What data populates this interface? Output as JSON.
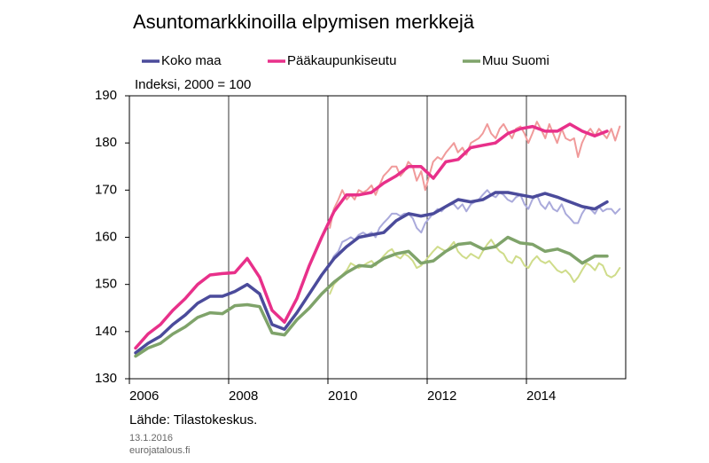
{
  "chart_data": {
    "type": "line",
    "title": "Asuntomarkkinoilla elpymisen merkkejä",
    "y_label": "Indeksi, 2000 = 100",
    "source": "Lähde: Tilastokeskus.",
    "date": "13.1.2016",
    "site": "eurojatalous.fi",
    "xlim": [
      2006,
      2016
    ],
    "xticks": [
      2006,
      2008,
      2010,
      2012,
      2014
    ],
    "ylim": [
      130,
      190
    ],
    "yticks": [
      130,
      140,
      150,
      160,
      170,
      180,
      190
    ],
    "grid": "x",
    "x": [
      2006.125,
      2006.375,
      2006.625,
      2006.875,
      2007.125,
      2007.375,
      2007.625,
      2007.875,
      2008.125,
      2008.375,
      2008.625,
      2008.875,
      2009.125,
      2009.375,
      2009.625,
      2009.875,
      2010.125,
      2010.375,
      2010.625,
      2010.875,
      2011.125,
      2011.375,
      2011.625,
      2011.875,
      2012.125,
      2012.375,
      2012.625,
      2012.875,
      2013.125,
      2013.375,
      2013.625,
      2013.875,
      2014.125,
      2014.375,
      2014.625,
      2014.875,
      2015.125,
      2015.375,
      2015.625
    ],
    "series": [
      {
        "name": "Koko maa",
        "color": "#4b4b9b",
        "values": [
          135.5,
          137.5,
          139,
          141.5,
          143.5,
          146,
          147.5,
          147.5,
          148.5,
          150,
          148,
          141.5,
          140.5,
          144,
          148,
          152,
          155.5,
          158,
          160,
          160.5,
          161,
          163.5,
          165,
          164.5,
          165,
          166.5,
          168,
          167.5,
          168,
          169.5,
          169.5,
          169,
          168.5,
          169.3,
          168.5,
          167.5,
          166.5,
          166,
          167.5
        ]
      },
      {
        "name": "Pääkaupunkiseutu",
        "color": "#e8308a",
        "values": [
          136.5,
          139.5,
          141.5,
          144.5,
          147,
          150,
          152,
          152.3,
          152.5,
          155.5,
          151.5,
          144.5,
          142,
          147,
          154,
          160,
          165.5,
          169,
          169,
          169.5,
          171.5,
          173,
          175,
          175,
          172.5,
          176,
          176.5,
          179,
          179.5,
          180,
          182,
          183,
          183.5,
          182.5,
          182.5,
          184,
          182.5,
          181.5,
          182.5
        ]
      },
      {
        "name": "Muu Suomi",
        "color": "#7fa36a",
        "values": [
          134.8,
          136.5,
          137.5,
          139.5,
          141,
          143,
          144,
          143.8,
          145.5,
          145.7,
          145.3,
          139.7,
          139.3,
          142.5,
          145,
          148,
          150.5,
          152.5,
          154,
          153.8,
          155.5,
          156.5,
          157,
          154.5,
          155,
          157,
          158.5,
          158.8,
          157.5,
          158,
          160,
          158.8,
          158.5,
          157,
          157.5,
          156.5,
          154.5,
          156,
          156
        ]
      }
    ],
    "monthly_x": [
      2010.04,
      2010.12,
      2010.21,
      2010.29,
      2010.38,
      2010.46,
      2010.54,
      2010.62,
      2010.71,
      2010.79,
      2010.88,
      2010.96,
      2011.04,
      2011.12,
      2011.21,
      2011.29,
      2011.38,
      2011.46,
      2011.54,
      2011.62,
      2011.71,
      2011.79,
      2011.88,
      2011.96,
      2012.04,
      2012.12,
      2012.21,
      2012.29,
      2012.38,
      2012.46,
      2012.54,
      2012.62,
      2012.71,
      2012.79,
      2012.88,
      2012.96,
      2013.04,
      2013.12,
      2013.21,
      2013.29,
      2013.38,
      2013.46,
      2013.54,
      2013.62,
      2013.71,
      2013.79,
      2013.88,
      2013.96,
      2014.04,
      2014.12,
      2014.21,
      2014.29,
      2014.38,
      2014.46,
      2014.54,
      2014.62,
      2014.71,
      2014.79,
      2014.88,
      2014.96,
      2015.04,
      2015.12,
      2015.21,
      2015.29,
      2015.38,
      2015.46,
      2015.54,
      2015.62,
      2015.71,
      2015.79,
      2015.88
    ],
    "monthly_series": [
      {
        "color": "#aaaadb",
        "values": [
          154,
          156,
          157,
          159,
          159.5,
          160,
          159.5,
          160.5,
          161,
          160.5,
          161,
          160,
          162,
          163,
          164,
          165,
          165,
          164.5,
          165,
          165,
          164,
          162,
          161,
          163,
          164,
          165,
          166,
          165.5,
          166.5,
          167,
          167,
          166,
          167,
          165.5,
          167,
          167.5,
          168,
          169,
          170,
          169,
          168.5,
          169.5,
          169,
          168,
          167.5,
          168.5,
          169,
          167,
          166,
          168,
          169,
          167,
          166,
          167.5,
          166,
          165.5,
          167,
          165,
          164,
          163,
          163,
          165,
          166.5,
          166,
          165,
          166.5,
          165.5,
          166,
          166,
          165,
          166
        ]
      },
      {
        "color": "#f09a9a",
        "values": [
          162,
          166,
          168,
          170,
          168,
          169,
          168,
          170,
          169.5,
          170,
          171,
          169,
          171,
          173,
          174,
          175,
          175,
          173,
          174,
          176,
          175,
          172,
          174,
          170,
          173,
          176,
          177,
          176.5,
          178,
          179,
          180,
          178,
          179,
          177.5,
          180,
          180.5,
          181,
          182,
          184,
          182,
          181,
          183,
          184,
          182.5,
          181,
          183,
          183.5,
          182,
          180,
          182,
          184.5,
          183,
          181,
          184,
          182,
          180,
          183,
          181,
          180.5,
          181,
          177,
          180,
          182,
          183,
          181.5,
          183,
          182,
          181,
          183,
          180.5,
          183.5
        ]
      },
      {
        "color": "#cfdc8a",
        "values": [
          148,
          150,
          151,
          152,
          153,
          154.5,
          154,
          153.5,
          154,
          154.5,
          155,
          154,
          155,
          156,
          157,
          157.5,
          156,
          155.5,
          156.5,
          156,
          155,
          153.5,
          154,
          155,
          156,
          157,
          158,
          157.5,
          157,
          158,
          159,
          157,
          156,
          155.5,
          156.5,
          156,
          155.5,
          157,
          158.5,
          159.5,
          158,
          157,
          156.5,
          155,
          154.5,
          156,
          155.5,
          154,
          153.5,
          155,
          156,
          155,
          154.5,
          155,
          154,
          153,
          152.5,
          153,
          152,
          150.5,
          151.5,
          153,
          154.5,
          154,
          153,
          154.5,
          154,
          152,
          151.5,
          152,
          153.5
        ]
      }
    ]
  }
}
